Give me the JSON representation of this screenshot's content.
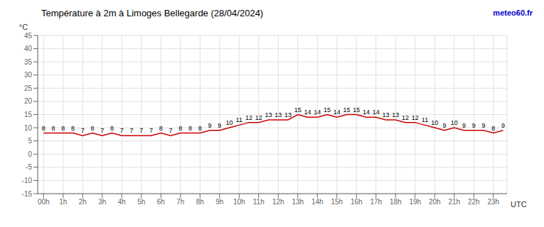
{
  "chart_data": {
    "type": "line",
    "title": "Température à 2m à Limoges Bellegarde (28/04/2024)",
    "x_label": "UTC",
    "y_label": "°C",
    "annotations": [
      {
        "text": "meteo60.fr",
        "color": "#0000cc"
      }
    ],
    "x": [
      0,
      0.5,
      1,
      1.5,
      2,
      2.5,
      3,
      3.5,
      4,
      4.5,
      5,
      5.5,
      6,
      6.5,
      7,
      7.5,
      8,
      8.5,
      9,
      9.5,
      10,
      10.5,
      11,
      11.5,
      12,
      12.5,
      13,
      13.5,
      14,
      14.5,
      15,
      15.5,
      16,
      16.5,
      17,
      17.5,
      18,
      18.5,
      19,
      19.5,
      20,
      20.5,
      21,
      21.5,
      22,
      22.5,
      23,
      23.5
    ],
    "values": [
      8,
      8,
      8,
      8,
      7,
      8,
      7,
      8,
      7,
      7,
      7,
      7,
      8,
      7,
      8,
      8,
      8,
      9,
      9,
      10,
      11,
      12,
      12,
      13,
      13,
      13,
      15,
      14,
      14,
      15,
      14,
      15,
      15,
      14,
      14,
      13,
      13,
      12,
      12,
      11,
      10,
      9,
      10,
      9,
      9,
      9,
      8,
      9
    ],
    "color": "#cc0000",
    "xlim": [
      -0.3,
      23.7
    ],
    "xticks": [
      {
        "value": 0,
        "label": "00h"
      },
      {
        "value": 1,
        "label": "1h"
      },
      {
        "value": 2,
        "label": "2h"
      },
      {
        "value": 3,
        "label": "3h"
      },
      {
        "value": 4,
        "label": "4h"
      },
      {
        "value": 5,
        "label": "5h"
      },
      {
        "value": 6,
        "label": "6h"
      },
      {
        "value": 7,
        "label": "7h"
      },
      {
        "value": 8,
        "label": "8h"
      },
      {
        "value": 9,
        "label": "9h"
      },
      {
        "value": 10,
        "label": "10h"
      },
      {
        "value": 11,
        "label": "11h"
      },
      {
        "value": 12,
        "label": "12h"
      },
      {
        "value": 13,
        "label": "13h"
      },
      {
        "value": 14,
        "label": "14h"
      },
      {
        "value": 15,
        "label": "15h"
      },
      {
        "value": 16,
        "label": "16h"
      },
      {
        "value": 17,
        "label": "17h"
      },
      {
        "value": 18,
        "label": "18h"
      },
      {
        "value": 19,
        "label": "19h"
      },
      {
        "value": 20,
        "label": "20h"
      },
      {
        "value": 21,
        "label": "21h"
      },
      {
        "value": 22,
        "label": "22h"
      },
      {
        "value": 23,
        "label": "23h"
      }
    ],
    "ylim": [
      -15,
      45
    ],
    "yticks": [
      -15,
      -10,
      -5,
      0,
      5,
      10,
      15,
      20,
      25,
      30,
      35,
      40,
      45
    ],
    "grid": true,
    "data_labels": true
  }
}
